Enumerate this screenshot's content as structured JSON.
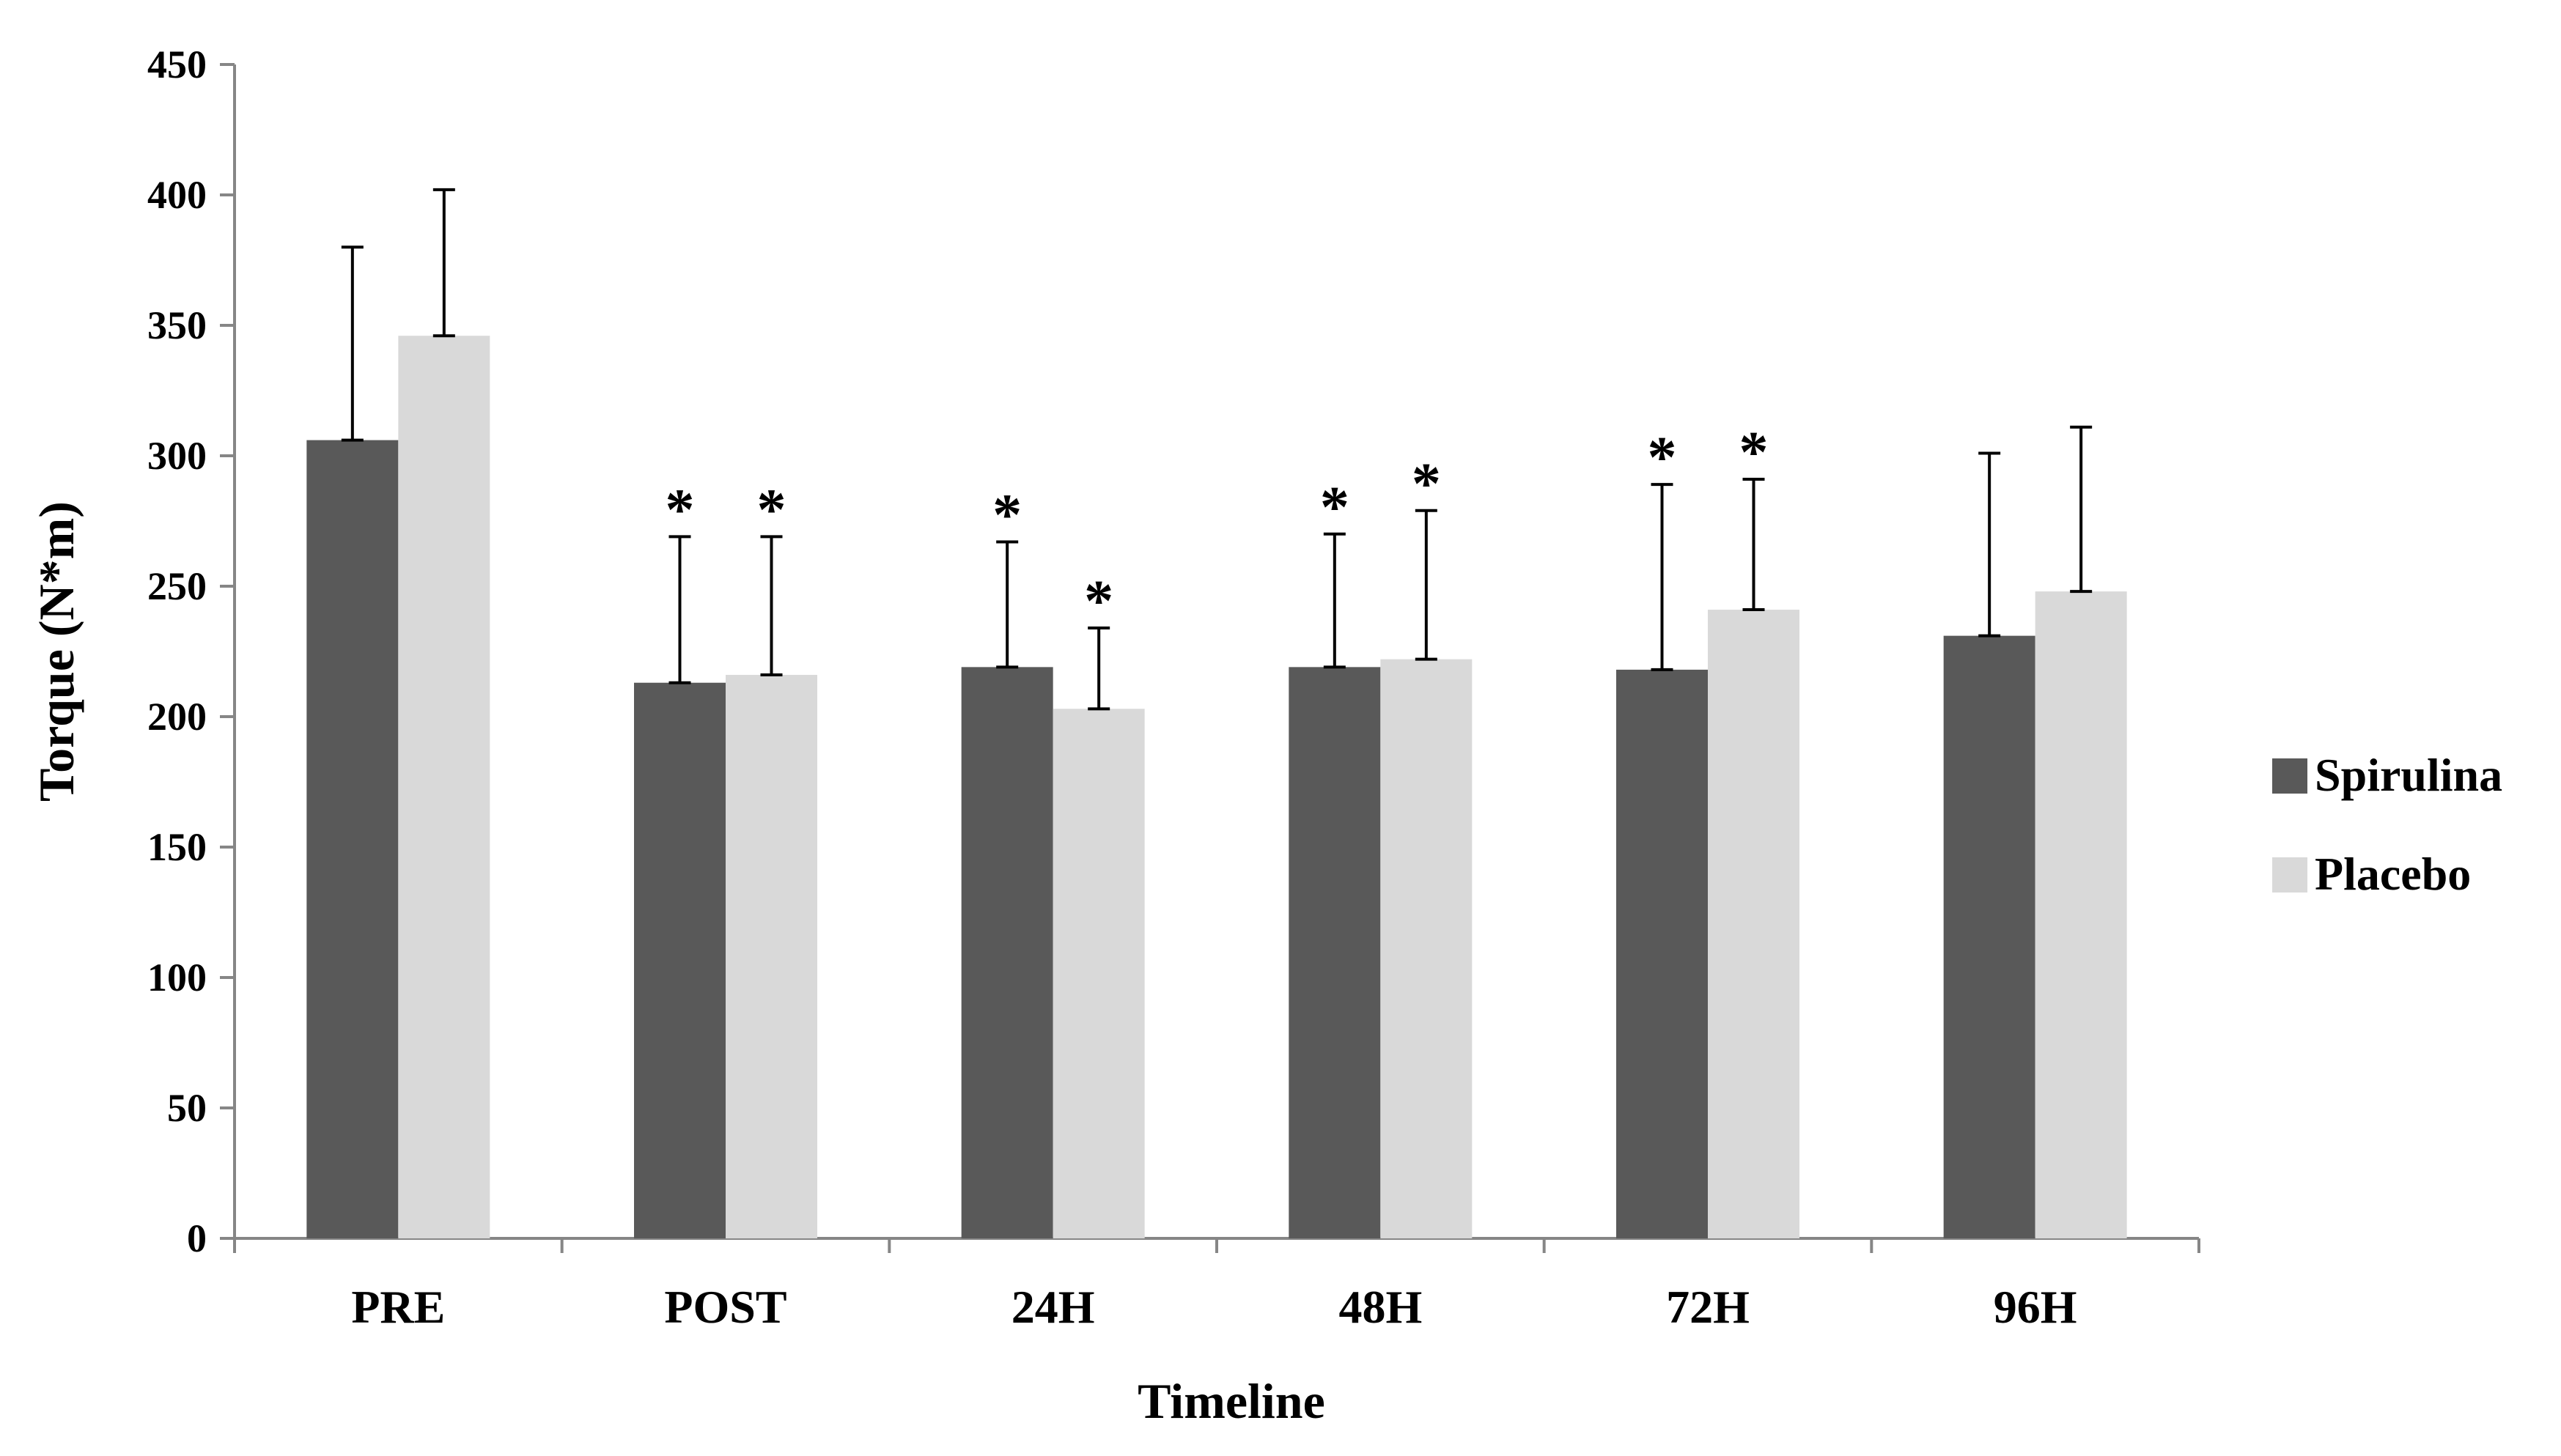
{
  "chart_data": {
    "type": "bar",
    "title": "",
    "xlabel": "Timeline",
    "ylabel": "Torque (N*m)",
    "ylim": [
      0,
      450
    ],
    "yticks": [
      0,
      50,
      100,
      150,
      200,
      250,
      300,
      350,
      400,
      450
    ],
    "grid": false,
    "legend_position": "right",
    "categories": [
      "PRE",
      "POST",
      "24H",
      "48H",
      "72H",
      "96H"
    ],
    "series": [
      {
        "name": "Spirulina",
        "color": "#595959",
        "values": [
          306,
          213,
          219,
          219,
          218,
          231
        ],
        "error": [
          74,
          56,
          48,
          51,
          71,
          70
        ],
        "significant": [
          false,
          true,
          true,
          true,
          true,
          false
        ]
      },
      {
        "name": "Placebo",
        "color": "#d9d9d9",
        "values": [
          346,
          216,
          203,
          222,
          241,
          248
        ],
        "error": [
          56,
          53,
          31,
          57,
          50,
          63
        ],
        "significant": [
          false,
          true,
          true,
          true,
          true,
          false
        ]
      }
    ],
    "annotation_marker": "*"
  }
}
